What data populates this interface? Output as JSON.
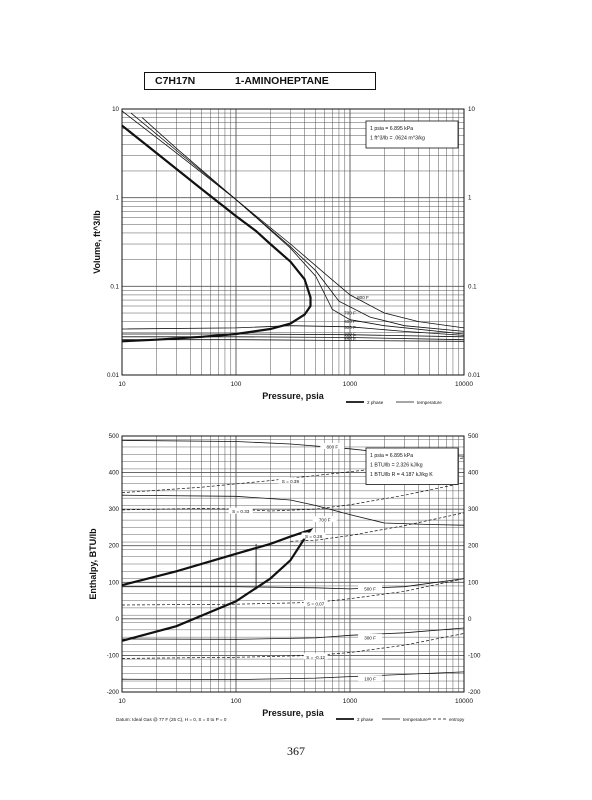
{
  "header": {
    "formula": "C7H17N",
    "name": "1-AMINOHEPTANE"
  },
  "page_number": "367",
  "chart_data": [
    {
      "type": "line",
      "xlabel": "Pressure,  psia",
      "ylabel": "Volume, ft^3/lb",
      "x_scale": "log",
      "y_scale": "log",
      "xlim": [
        10,
        10000
      ],
      "ylim": [
        0.01,
        10
      ],
      "x_ticks": [
        "10",
        "100",
        "1000",
        "10000"
      ],
      "y_ticks_left": [
        "10",
        "1",
        "0.1",
        "0.01"
      ],
      "y_ticks_right": [
        "10",
        "1",
        "0.1",
        "0.01"
      ],
      "grid": true,
      "notes": [
        "1 psia  =  6.895 kPa",
        "1 ft^3/lb  =  .0624 m^3/kg"
      ],
      "legend": [
        {
          "label": "2 phase",
          "style": "thick"
        },
        {
          "label": "temperature",
          "style": "thin"
        }
      ],
      "series": [
        {
          "role": "2 phase",
          "x": [
            10,
            20,
            50,
            100,
            150,
            200,
            300,
            400,
            450,
            450,
            400,
            300,
            200,
            100,
            50,
            20,
            10
          ],
          "y": [
            6.5,
            3.2,
            1.25,
            0.62,
            0.42,
            0.3,
            0.19,
            0.12,
            0.075,
            0.06,
            0.048,
            0.038,
            0.033,
            0.029,
            0.027,
            0.025,
            0.024
          ]
        },
        {
          "name": "800 F",
          "x": [
            10,
            30,
            100,
            300,
            600,
            1000,
            2000,
            4000,
            10000
          ],
          "y": [
            9.5,
            3.2,
            0.95,
            0.3,
            0.14,
            0.08,
            0.05,
            0.04,
            0.034
          ]
        },
        {
          "name": "700 F",
          "x": [
            12,
            30,
            100,
            300,
            500,
            800,
            1500,
            3000,
            10000
          ],
          "y": [
            9.0,
            3.4,
            0.95,
            0.28,
            0.15,
            0.068,
            0.045,
            0.036,
            0.031
          ]
        },
        {
          "name": "600 F",
          "x": [
            15,
            30,
            100,
            300,
            500,
            700,
            1000,
            2000,
            10000
          ],
          "y": [
            8.0,
            3.6,
            0.95,
            0.27,
            0.13,
            0.055,
            0.042,
            0.036,
            0.029
          ]
        },
        {
          "name": "500 F",
          "x": [
            10,
            100,
            300,
            1000,
            3000,
            10000
          ],
          "y": [
            0.033,
            0.034,
            0.036,
            0.035,
            0.031,
            0.028
          ]
        },
        {
          "name": "300 F",
          "x": [
            10,
            100,
            1000,
            10000
          ],
          "y": [
            0.029,
            0.029,
            0.0285,
            0.027
          ]
        },
        {
          "name": "200 F",
          "x": [
            10,
            100,
            1000,
            10000
          ],
          "y": [
            0.027,
            0.027,
            0.0265,
            0.025
          ]
        },
        {
          "name": "100 F",
          "x": [
            10,
            100,
            1000,
            10000
          ],
          "y": [
            0.025,
            0.025,
            0.0245,
            0.024
          ]
        }
      ]
    },
    {
      "type": "line",
      "xlabel": "Pressure,  psia",
      "ylabel": "Enthalpy, BTU/lb",
      "x_scale": "log",
      "xlim": [
        10,
        10000
      ],
      "ylim": [
        -200,
        500
      ],
      "x_ticks": [
        "10",
        "100",
        "1000",
        "10000"
      ],
      "y_ticks": [
        "500",
        "400",
        "300",
        "200",
        "100",
        "0",
        "-100",
        "-200"
      ],
      "grid": true,
      "notes": [
        "1 psia  =  6.895 kPa",
        "1 BTU/lb  =  2.326 kJ/kg",
        "1 BTU/lb R  =  4.187 kJ/kg K"
      ],
      "footnote": "Datum: Ideal Gas @ 77 F (25 C), H = 0, S = 0 to P = 0",
      "legend": [
        {
          "label": "2 phase",
          "style": "thick"
        },
        {
          "label": "temperature",
          "style": "thin"
        },
        {
          "label": "entropy",
          "style": "dashed"
        }
      ],
      "series": [
        {
          "role": "2 phase",
          "x": [
            10,
            30,
            100,
            200,
            300,
            400,
            450,
            400,
            300,
            200,
            100,
            30,
            10
          ],
          "y": [
            92,
            130,
            178,
            205,
            225,
            238,
            243,
            220,
            160,
            110,
            48,
            -20,
            -60
          ]
        },
        {
          "name": "800 F",
          "x": [
            10,
            100,
            300,
            1000,
            2000,
            5000,
            10000
          ],
          "y": [
            488,
            485,
            478,
            465,
            455,
            448,
            445
          ]
        },
        {
          "name": "700 F",
          "x": [
            10,
            100,
            300,
            500,
            1000,
            2000,
            5000,
            10000
          ],
          "y": [
            338,
            335,
            325,
            310,
            285,
            262,
            258,
            256
          ]
        },
        {
          "name": "500 F",
          "x": [
            10,
            100,
            500,
            1000,
            3000,
            10000
          ],
          "y": [
            88,
            88,
            85,
            82,
            88,
            110
          ]
        },
        {
          "name": "300 F",
          "x": [
            10,
            100,
            500,
            1000,
            3000,
            10000
          ],
          "y": [
            -55,
            -56,
            -52,
            -45,
            -38,
            -25
          ]
        },
        {
          "name": "100 F",
          "x": [
            10,
            100,
            500,
            1000,
            3000,
            10000
          ],
          "y": [
            -165,
            -166,
            -162,
            -158,
            -152,
            -145
          ]
        },
        {
          "name": "S = 0.39",
          "style": "dashed",
          "x": [
            10,
            50,
            200,
            500,
            1000,
            3000,
            10000
          ],
          "y": [
            345,
            360,
            378,
            392,
            402,
            420,
            440
          ]
        },
        {
          "name": "S = 0.33",
          "style": "dashed",
          "x": [
            10,
            50,
            100,
            200,
            500,
            1000,
            3000,
            10000
          ],
          "y": [
            298,
            302,
            300,
            295,
            300,
            312,
            338,
            372
          ]
        },
        {
          "name": "S = 0.26",
          "style": "dashed",
          "x": [
            300,
            500,
            1000,
            3000,
            10000
          ],
          "y": [
            212,
            215,
            228,
            255,
            290
          ]
        },
        {
          "name": "S = 0.07",
          "style": "dashed",
          "x": [
            10,
            100,
            500,
            1000,
            3000,
            10000
          ],
          "y": [
            38,
            40,
            45,
            55,
            75,
            110
          ]
        },
        {
          "name": "S = -0.12",
          "style": "dashed",
          "x": [
            10,
            100,
            500,
            1000,
            3000,
            10000
          ],
          "y": [
            -108,
            -105,
            -100,
            -92,
            -72,
            -40
          ]
        }
      ],
      "curve_labels": [
        {
          "text": "800 F",
          "x": 700,
          "y": 470
        },
        {
          "text": "S = 0.39",
          "x": 300,
          "y": 375
        },
        {
          "text": "S = 0.33",
          "x": 110,
          "y": 293
        },
        {
          "text": "700 F",
          "x": 600,
          "y": 270
        },
        {
          "text": "S = 0.26",
          "x": 480,
          "y": 225
        },
        {
          "text": "500 F",
          "x": 1500,
          "y": 82
        },
        {
          "text": "S = 0.07",
          "x": 500,
          "y": 40
        },
        {
          "text": "300 F",
          "x": 1500,
          "y": -52
        },
        {
          "text": "S = -0.12",
          "x": 500,
          "y": -105
        },
        {
          "text": "100 F",
          "x": 1500,
          "y": -165
        }
      ]
    }
  ]
}
